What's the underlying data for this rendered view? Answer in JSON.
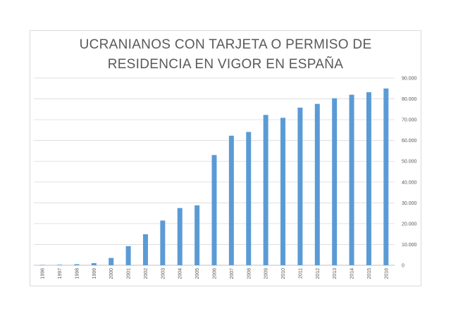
{
  "chart_data": {
    "type": "bar",
    "title_lines": [
      "UCRANIANOS CON TARJETA O PERMISO DE",
      "RESIDENCIA EN VIGOR EN ESPAÑA"
    ],
    "categories": [
      "1996",
      "1997",
      "1998",
      "1999",
      "2000",
      "2001",
      "2002",
      "2003",
      "2004",
      "2005",
      "2006",
      "2007",
      "2008",
      "2009",
      "2010",
      "2011",
      "2012",
      "2013",
      "2014",
      "2015",
      "2016"
    ],
    "values": [
      150,
      250,
      500,
      1000,
      3500,
      9200,
      14900,
      21500,
      27500,
      28800,
      53000,
      62300,
      64100,
      72300,
      70900,
      75800,
      77600,
      80300,
      82000,
      83200,
      85000
    ],
    "yticks": [
      0,
      10000,
      20000,
      30000,
      40000,
      50000,
      60000,
      70000,
      80000,
      90000
    ],
    "ytick_labels": [
      "0",
      "10.000",
      "20.000",
      "30.000",
      "40.000",
      "50.000",
      "60.000",
      "70.000",
      "80.000",
      "90.000"
    ],
    "ylim": [
      0,
      90000
    ],
    "y_axis_position": "right",
    "grid": true,
    "bar_color": "#5b9bd5",
    "grid_color": "#d9d9d9",
    "legend": "none"
  }
}
